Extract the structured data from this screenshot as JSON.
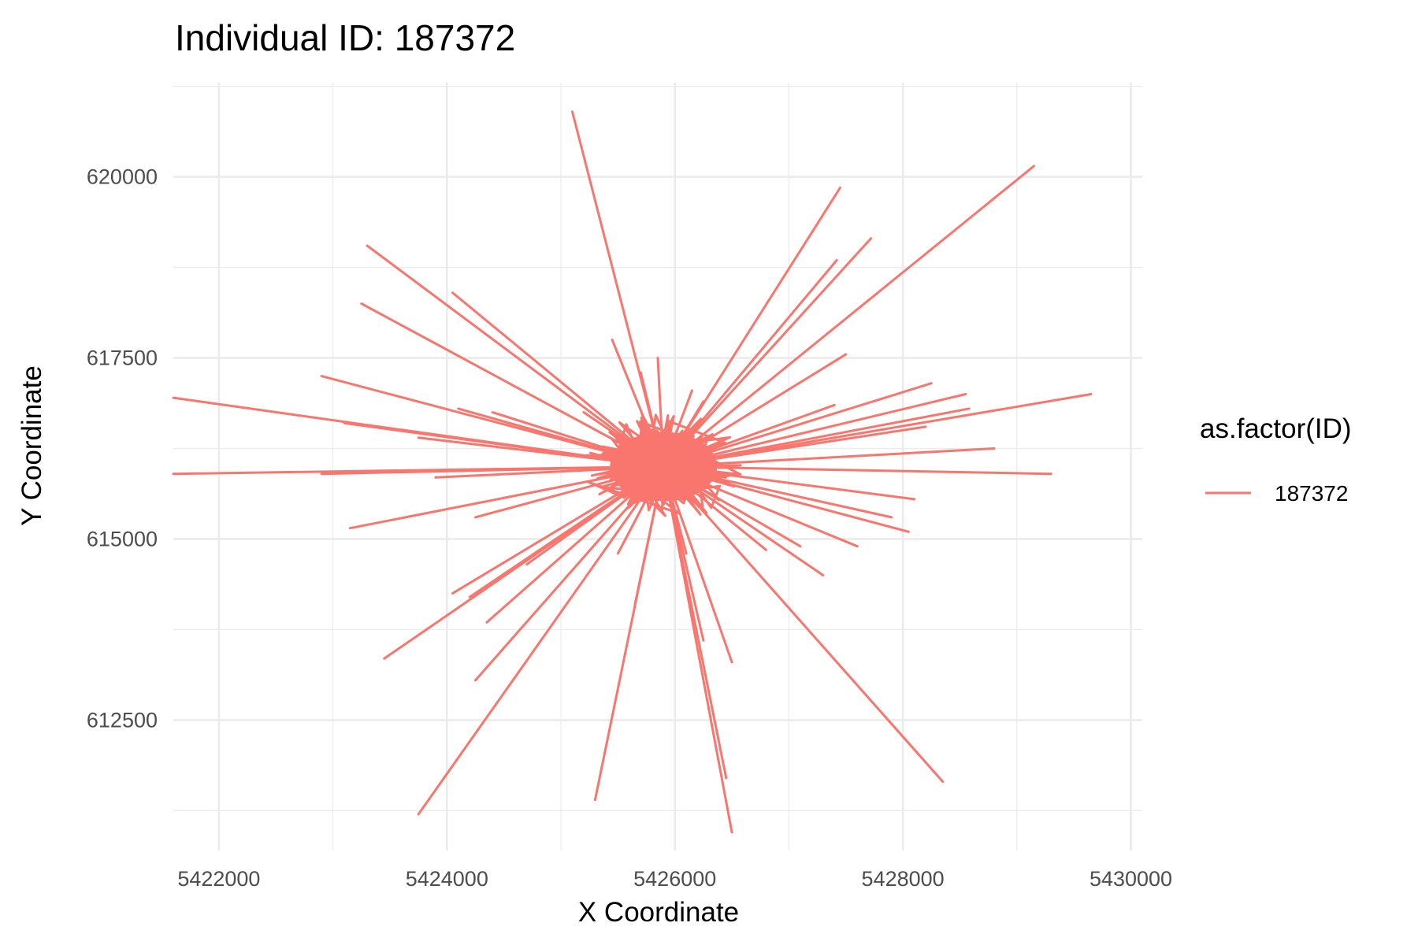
{
  "chart_data": {
    "type": "line",
    "title": "Individual ID: 187372",
    "xlabel": "X Coordinate",
    "ylabel": "Y Coordinate",
    "xlim": [
      5421600,
      5430100
    ],
    "ylim": [
      610700,
      621300
    ],
    "x_ticks": [
      5422000,
      5424000,
      5426000,
      5428000,
      5430000
    ],
    "x_tick_labels": [
      "5422000",
      "5424000",
      "5426000",
      "5428000",
      "5430000"
    ],
    "y_ticks": [
      612500,
      615000,
      617500,
      620000
    ],
    "y_tick_labels": [
      "612500",
      "615000",
      "617500",
      "620000"
    ],
    "grid": true,
    "legend": {
      "title": "as.factor(ID)",
      "position": "right",
      "entries": [
        "187372"
      ]
    },
    "series": [
      {
        "name": "187372",
        "color": "#F8766D",
        "center": [
          5425900,
          616000
        ],
        "spoke_endpoints": [
          [
            5425100,
            620900
          ],
          [
            5429150,
            620150
          ],
          [
            5427450,
            619850
          ],
          [
            5427720,
            619150
          ],
          [
            5427420,
            618850
          ],
          [
            5423300,
            619050
          ],
          [
            5423250,
            618250
          ],
          [
            5424050,
            618400
          ],
          [
            5425450,
            617750
          ],
          [
            5427500,
            617550
          ],
          [
            5428250,
            617150
          ],
          [
            5428550,
            617000
          ],
          [
            5429650,
            617000
          ],
          [
            5428580,
            616800
          ],
          [
            5428200,
            616550
          ],
          [
            5427400,
            616850
          ],
          [
            5428800,
            616250
          ],
          [
            5429300,
            615900
          ],
          [
            5428100,
            615550
          ],
          [
            5427900,
            615300
          ],
          [
            5428050,
            615100
          ],
          [
            5427600,
            614900
          ],
          [
            5427100,
            614900
          ],
          [
            5426800,
            614850
          ],
          [
            5427300,
            614500
          ],
          [
            5428350,
            611650
          ],
          [
            5426500,
            613300
          ],
          [
            5426500,
            610950
          ],
          [
            5426450,
            611700
          ],
          [
            5426250,
            613600
          ],
          [
            5426100,
            614800
          ],
          [
            5425650,
            614100
          ],
          [
            5425300,
            611400
          ],
          [
            5425500,
            614800
          ],
          [
            5423750,
            611200
          ],
          [
            5424250,
            613050
          ],
          [
            5423450,
            613350
          ],
          [
            5424350,
            613850
          ],
          [
            5424200,
            614200
          ],
          [
            5424050,
            614250
          ],
          [
            5424700,
            614650
          ],
          [
            5424250,
            615300
          ],
          [
            5423150,
            615150
          ],
          [
            5422900,
            615900
          ],
          [
            5421600,
            615900
          ],
          [
            5423900,
            615850
          ],
          [
            5423100,
            616600
          ],
          [
            5421600,
            616950
          ],
          [
            5422900,
            617250
          ],
          [
            5423750,
            616400
          ],
          [
            5424100,
            616800
          ],
          [
            5425200,
            616750
          ],
          [
            5424400,
            616750
          ],
          [
            5425700,
            617300
          ],
          [
            5426150,
            617050
          ],
          [
            5425850,
            617500
          ],
          [
            5426250,
            616900
          ]
        ]
      }
    ]
  }
}
